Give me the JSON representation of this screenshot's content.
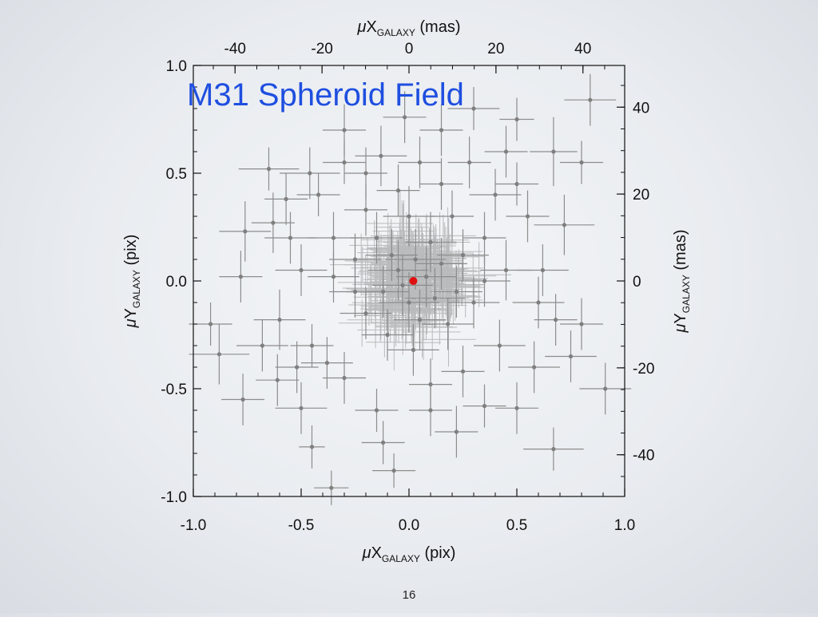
{
  "slide": {
    "page_number": "16"
  },
  "chart_data": {
    "type": "scatter",
    "title": "M31 Spheroid Field",
    "title_color": "#1f4fe0",
    "xlabel": {
      "prefix": "μ",
      "main": "X",
      "sub": "GALAXY",
      "unit": " (pix)"
    },
    "ylabel": {
      "prefix": "μ",
      "main": "Y",
      "sub": "GALAXY",
      "unit": " (pix)"
    },
    "x2label": {
      "prefix": "μ",
      "main": "X",
      "sub": "GALAXY",
      "unit": " (mas)"
    },
    "y2label": {
      "prefix": "μ",
      "main": "Y",
      "sub": "GALAXY",
      "unit": " (mas)"
    },
    "xlim": [
      -1.0,
      1.0
    ],
    "ylim": [
      -1.0,
      1.0
    ],
    "x2lim": [
      -49.6,
      49.6
    ],
    "y2lim": [
      -49.6,
      49.6
    ],
    "xticks": [
      "-1.0",
      "-0.5",
      "0.0",
      "0.5",
      "1.0"
    ],
    "yticks": [
      "-1.0",
      "-0.5",
      "0.0",
      "0.5",
      "1.0"
    ],
    "x2ticks": [
      "-40",
      "-20",
      "0",
      "20",
      "40"
    ],
    "y2ticks": [
      "-40",
      "-20",
      "0",
      "20",
      "40"
    ],
    "grid": false,
    "point_color": "#8c8c8c",
    "mean_color": "#e01010",
    "mean_point": {
      "x": 0.02,
      "y": 0.0
    },
    "points": [
      {
        "x": 0.84,
        "y": 0.84,
        "ex": 0.12,
        "ey": 0.12
      },
      {
        "x": 0.8,
        "y": 0.55,
        "ex": 0.1,
        "ey": 0.1
      },
      {
        "x": 0.67,
        "y": 0.6,
        "ex": 0.11,
        "ey": 0.16
      },
      {
        "x": 0.5,
        "y": 0.75,
        "ex": 0.08,
        "ey": 0.1
      },
      {
        "x": 0.45,
        "y": 0.6,
        "ex": 0.1,
        "ey": 0.12
      },
      {
        "x": 0.3,
        "y": 0.8,
        "ex": 0.12,
        "ey": 0.1
      },
      {
        "x": -0.02,
        "y": 0.76,
        "ex": 0.1,
        "ey": 0.12
      },
      {
        "x": 0.15,
        "y": 0.7,
        "ex": 0.1,
        "ey": 0.12
      },
      {
        "x": -0.13,
        "y": 0.58,
        "ex": 0.12,
        "ey": 0.14
      },
      {
        "x": -0.3,
        "y": 0.55,
        "ex": 0.1,
        "ey": 0.1
      },
      {
        "x": -0.46,
        "y": 0.5,
        "ex": 0.14,
        "ey": 0.12
      },
      {
        "x": -0.65,
        "y": 0.52,
        "ex": 0.14,
        "ey": 0.1
      },
      {
        "x": -0.57,
        "y": 0.38,
        "ex": 0.1,
        "ey": 0.12
      },
      {
        "x": -0.76,
        "y": 0.23,
        "ex": 0.12,
        "ey": 0.14
      },
      {
        "x": -0.63,
        "y": 0.27,
        "ex": 0.1,
        "ey": 0.14
      },
      {
        "x": -0.88,
        "y": -0.34,
        "ex": 0.14,
        "ey": 0.14
      },
      {
        "x": -0.92,
        "y": -0.2,
        "ex": 0.1,
        "ey": 0.1
      },
      {
        "x": -0.77,
        "y": -0.55,
        "ex": 0.1,
        "ey": 0.12
      },
      {
        "x": -0.61,
        "y": -0.46,
        "ex": 0.1,
        "ey": 0.12
      },
      {
        "x": -0.5,
        "y": -0.59,
        "ex": 0.12,
        "ey": 0.12
      },
      {
        "x": -0.45,
        "y": -0.77,
        "ex": 0.06,
        "ey": 0.1
      },
      {
        "x": -0.36,
        "y": -0.96,
        "ex": 0.08,
        "ey": 0.08
      },
      {
        "x": -0.07,
        "y": -0.88,
        "ex": 0.1,
        "ey": 0.08
      },
      {
        "x": 0.35,
        "y": -0.58,
        "ex": 0.1,
        "ey": 0.1
      },
      {
        "x": 0.5,
        "y": -0.59,
        "ex": 0.1,
        "ey": 0.12
      },
      {
        "x": 0.67,
        "y": -0.78,
        "ex": 0.14,
        "ey": 0.1
      },
      {
        "x": 0.91,
        "y": -0.5,
        "ex": 0.12,
        "ey": 0.12
      },
      {
        "x": 0.8,
        "y": -0.2,
        "ex": 0.1,
        "ey": 0.12
      },
      {
        "x": 0.68,
        "y": -0.18,
        "ex": 0.1,
        "ey": 0.12
      },
      {
        "x": 0.72,
        "y": 0.26,
        "ex": 0.14,
        "ey": 0.14
      },
      {
        "x": 0.55,
        "y": 0.3,
        "ex": 0.1,
        "ey": 0.12
      },
      {
        "x": 0.35,
        "y": 0.2,
        "ex": 0.1,
        "ey": 0.12
      },
      {
        "x": 0.2,
        "y": 0.3,
        "ex": 0.1,
        "ey": 0.12
      },
      {
        "x": -0.2,
        "y": 0.33,
        "ex": 0.1,
        "ey": 0.12
      },
      {
        "x": -0.35,
        "y": 0.2,
        "ex": 0.12,
        "ey": 0.12
      },
      {
        "x": -0.78,
        "y": 0.02,
        "ex": 0.1,
        "ey": 0.12
      },
      {
        "x": -0.6,
        "y": -0.18,
        "ex": 0.12,
        "ey": 0.14
      },
      {
        "x": -0.45,
        "y": -0.3,
        "ex": 0.1,
        "ey": 0.1
      },
      {
        "x": -0.3,
        "y": -0.45,
        "ex": 0.1,
        "ey": 0.12
      },
      {
        "x": -0.15,
        "y": -0.6,
        "ex": 0.1,
        "ey": 0.1
      },
      {
        "x": 0.1,
        "y": -0.48,
        "ex": 0.1,
        "ey": 0.12
      },
      {
        "x": 0.25,
        "y": -0.42,
        "ex": 0.1,
        "ey": 0.12
      },
      {
        "x": 0.42,
        "y": -0.3,
        "ex": 0.12,
        "ey": 0.12
      },
      {
        "x": 0.58,
        "y": -0.4,
        "ex": 0.12,
        "ey": 0.12
      },
      {
        "x": 0.62,
        "y": 0.05,
        "ex": 0.12,
        "ey": 0.12
      },
      {
        "x": 0.45,
        "y": 0.05,
        "ex": 0.12,
        "ey": 0.14
      },
      {
        "x": -0.5,
        "y": 0.05,
        "ex": 0.12,
        "ey": 0.12
      },
      {
        "x": -0.42,
        "y": 0.4,
        "ex": 0.1,
        "ey": 0.1
      },
      {
        "x": 0.05,
        "y": 0.55,
        "ex": 0.1,
        "ey": 0.12
      },
      {
        "x": 0.15,
        "y": 0.45,
        "ex": 0.1,
        "ey": 0.12
      },
      {
        "x": -0.05,
        "y": 0.42,
        "ex": 0.1,
        "ey": 0.12
      },
      {
        "x": -0.25,
        "y": 0.1,
        "ex": 0.12,
        "ey": 0.12
      },
      {
        "x": 0.3,
        "y": -0.1,
        "ex": 0.12,
        "ey": 0.12
      },
      {
        "x": -0.1,
        "y": -0.25,
        "ex": 0.12,
        "ey": 0.12
      },
      {
        "x": 0.18,
        "y": -0.2,
        "ex": 0.12,
        "ey": 0.12
      },
      {
        "x": -0.15,
        "y": 0.2,
        "ex": 0.12,
        "ey": 0.12
      },
      {
        "x": 0.1,
        "y": 0.18,
        "ex": 0.12,
        "ey": 0.14
      },
      {
        "x": 0.0,
        "y": -0.1,
        "ex": 0.14,
        "ey": 0.14
      },
      {
        "x": -0.05,
        "y": 0.05,
        "ex": 0.14,
        "ey": 0.14
      },
      {
        "x": 0.08,
        "y": 0.02,
        "ex": 0.14,
        "ey": 0.14
      },
      {
        "x": -0.12,
        "y": -0.05,
        "ex": 0.12,
        "ey": 0.12
      },
      {
        "x": 0.15,
        "y": 0.08,
        "ex": 0.12,
        "ey": 0.12
      },
      {
        "x": 0.05,
        "y": -0.18,
        "ex": 0.12,
        "ey": 0.14
      },
      {
        "x": -0.08,
        "y": 0.12,
        "ex": 0.12,
        "ey": 0.12
      },
      {
        "x": 0.22,
        "y": -0.05,
        "ex": 0.12,
        "ey": 0.12
      },
      {
        "x": -0.2,
        "y": -0.15,
        "ex": 0.12,
        "ey": 0.12
      },
      {
        "x": 0.12,
        "y": -0.08,
        "ex": 0.14,
        "ey": 0.14
      },
      {
        "x": -0.03,
        "y": -0.02,
        "ex": 0.14,
        "ey": 0.14
      },
      {
        "x": 0.03,
        "y": 0.1,
        "ex": 0.14,
        "ey": 0.14
      },
      {
        "x": 0.25,
        "y": 0.12,
        "ex": 0.12,
        "ey": 0.12
      },
      {
        "x": -0.25,
        "y": -0.05,
        "ex": 0.12,
        "ey": 0.12
      },
      {
        "x": 0.35,
        "y": 0.0,
        "ex": 0.12,
        "ey": 0.12
      },
      {
        "x": -0.35,
        "y": 0.02,
        "ex": 0.12,
        "ey": 0.12
      },
      {
        "x": 0.0,
        "y": 0.3,
        "ex": 0.12,
        "ey": 0.14
      },
      {
        "x": 0.02,
        "y": -0.32,
        "ex": 0.12,
        "ey": 0.12
      },
      {
        "x": 0.4,
        "y": 0.4,
        "ex": 0.12,
        "ey": 0.12
      },
      {
        "x": -0.38,
        "y": -0.38,
        "ex": 0.12,
        "ey": 0.12
      },
      {
        "x": -0.52,
        "y": -0.4,
        "ex": 0.1,
        "ey": 0.12
      },
      {
        "x": 0.5,
        "y": 0.45,
        "ex": 0.1,
        "ey": 0.1
      },
      {
        "x": 0.28,
        "y": 0.55,
        "ex": 0.1,
        "ey": 0.12
      },
      {
        "x": -0.68,
        "y": -0.3,
        "ex": 0.12,
        "ey": 0.12
      },
      {
        "x": 0.75,
        "y": -0.35,
        "ex": 0.12,
        "ey": 0.12
      },
      {
        "x": -0.12,
        "y": -0.75,
        "ex": 0.1,
        "ey": 0.1
      },
      {
        "x": 0.22,
        "y": -0.7,
        "ex": 0.1,
        "ey": 0.12
      },
      {
        "x": -0.3,
        "y": 0.7,
        "ex": 0.1,
        "ey": 0.12
      },
      {
        "x": 0.6,
        "y": -0.1,
        "ex": 0.12,
        "ey": 0.12
      },
      {
        "x": -0.55,
        "y": 0.2,
        "ex": 0.12,
        "ey": 0.12
      },
      {
        "x": 0.1,
        "y": -0.6,
        "ex": 0.1,
        "ey": 0.12
      },
      {
        "x": -0.2,
        "y": 0.5,
        "ex": 0.1,
        "ey": 0.12
      }
    ]
  }
}
